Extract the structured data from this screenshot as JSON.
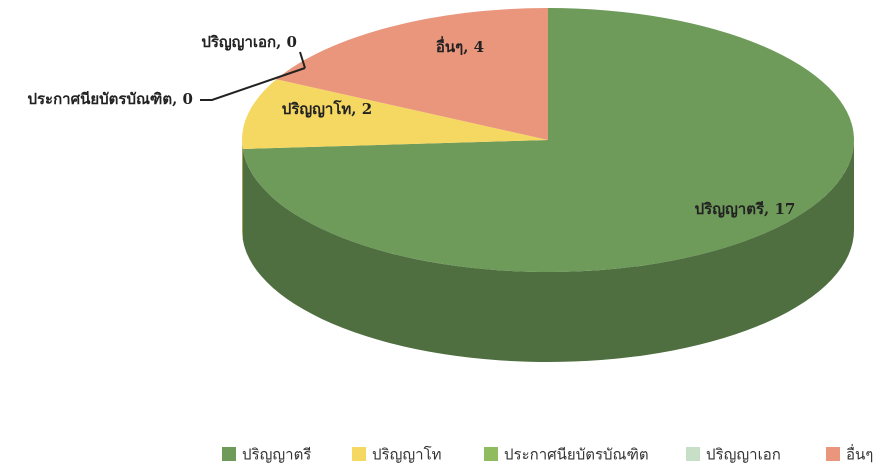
{
  "chart_data": {
    "type": "pie",
    "categories": [
      "ปริญญาตรี",
      "ปริญญาโท",
      "ประกาศนียบัตรบัณฑิต",
      "ปริญญาเอก",
      "อื่นๆ"
    ],
    "values": [
      17,
      2,
      0,
      0,
      4
    ],
    "value_labels": [
      "ปริญญาตรี, 17",
      "ปริญญาโท, 2",
      "ประกาศนียบัตรบัณฑิต, 0",
      "ปริญญาเอก, 0",
      "อื่นๆ, 4"
    ],
    "colors": [
      "#6e9a5a",
      "#f5d862",
      "#8fbc5e",
      "#c6dfc6",
      "#e9967c"
    ],
    "legend": "bottom"
  }
}
